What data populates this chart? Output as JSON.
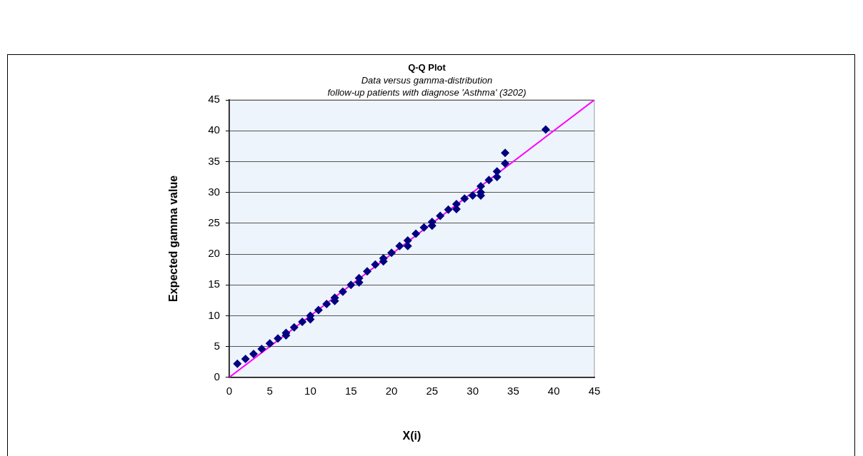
{
  "chart_data": {
    "type": "scatter",
    "title": "Q-Q Plot",
    "subtitle": "Data versus gamma-distribution\nfollow-up patients with diagnose 'Asthma' (3202)",
    "xlabel": "X(i)",
    "ylabel": "Expected gamma value",
    "xlim": [
      0,
      45
    ],
    "xticks": [
      0,
      5,
      10,
      15,
      20,
      25,
      30,
      35,
      40,
      45
    ],
    "ylim": [
      0,
      45
    ],
    "yticks": [
      0,
      5,
      10,
      15,
      20,
      25,
      30,
      35,
      40,
      45
    ],
    "grid": "y",
    "legend": false,
    "marker": "diamond",
    "series": [
      {
        "type": "scatter",
        "color": "#000080",
        "x": [
          1,
          2,
          3,
          4,
          5,
          6,
          7,
          7,
          8,
          9,
          10,
          10,
          11,
          12,
          13,
          13,
          14,
          15,
          16,
          16,
          17,
          18,
          19,
          19,
          20,
          21,
          22,
          22,
          23,
          24,
          25,
          25,
          26,
          27,
          28,
          28,
          29,
          30,
          31,
          31,
          31,
          32,
          33,
          33,
          34,
          34,
          39
        ],
        "values": [
          2.2,
          3,
          3.8,
          4.6,
          5.5,
          6.3,
          7.2,
          6.8,
          8.1,
          9,
          10,
          9.4,
          10.9,
          11.9,
          12.9,
          12.4,
          13.9,
          15,
          16.1,
          15.4,
          17.2,
          18.3,
          19.3,
          18.8,
          20.2,
          21.3,
          22.2,
          21.3,
          23.3,
          24.3,
          25.2,
          24.6,
          26.2,
          27.2,
          28.1,
          27.3,
          29,
          29.5,
          30,
          29.5,
          31,
          32,
          32.5,
          33.4,
          34.7,
          36.4,
          40.2
        ]
      },
      {
        "type": "line",
        "color": "#ff00ff",
        "marker": "none",
        "x": [
          0,
          45
        ],
        "values": [
          0,
          45
        ]
      }
    ]
  }
}
